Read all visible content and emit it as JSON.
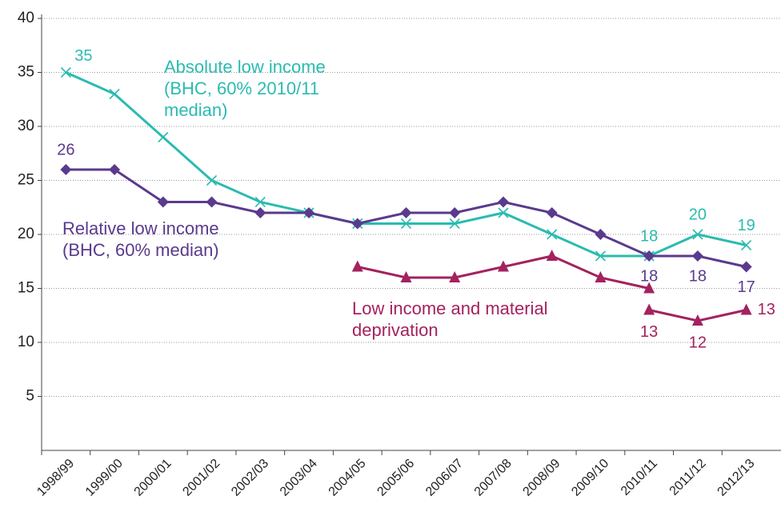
{
  "chart_data": {
    "type": "line",
    "categories": [
      "1998/99",
      "1999/00",
      "2000/01",
      "2001/02",
      "2002/03",
      "2003/04",
      "2004/05",
      "2005/06",
      "2006/07",
      "2007/08",
      "2008/09",
      "2009/10",
      "2010/11",
      "2011/12",
      "2012/13"
    ],
    "ylim": [
      0,
      40
    ],
    "yticks": [
      5,
      10,
      15,
      20,
      25,
      30,
      35,
      40
    ],
    "grid": true,
    "series": [
      {
        "name": "Absolute low income (BHC, 60% 2010/11 median)",
        "color": "#2bbbb0",
        "marker": "x",
        "values": [
          35,
          33,
          29,
          25,
          23,
          22,
          21,
          21,
          21,
          22,
          20,
          18,
          18,
          20,
          19
        ],
        "value_labels": [
          "35",
          null,
          null,
          null,
          null,
          null,
          null,
          null,
          null,
          null,
          null,
          null,
          "18",
          "20",
          "19"
        ]
      },
      {
        "name": "Relative low income (BHC, 60% median)",
        "color": "#5a3a8d",
        "marker": "diamond",
        "values": [
          26,
          26,
          23,
          23,
          22,
          22,
          21,
          22,
          22,
          23,
          22,
          20,
          18,
          18,
          17
        ],
        "value_labels": [
          "26",
          null,
          null,
          null,
          null,
          null,
          null,
          null,
          null,
          null,
          null,
          null,
          "18",
          "18",
          "17"
        ]
      },
      {
        "name": "Low income and material deprivation",
        "color": "#a3225f",
        "marker": "triangle",
        "values": [
          null,
          null,
          null,
          null,
          null,
          null,
          17,
          16,
          16,
          17,
          18,
          16,
          15,
          null,
          null
        ]
      },
      {
        "color": "#a3225f",
        "marker": "triangle",
        "values": [
          null,
          null,
          null,
          null,
          null,
          null,
          null,
          null,
          null,
          null,
          null,
          null,
          13,
          12,
          13
        ],
        "value_labels": [
          null,
          null,
          null,
          null,
          null,
          null,
          null,
          null,
          null,
          null,
          null,
          null,
          "13",
          "12",
          "13"
        ]
      }
    ]
  }
}
